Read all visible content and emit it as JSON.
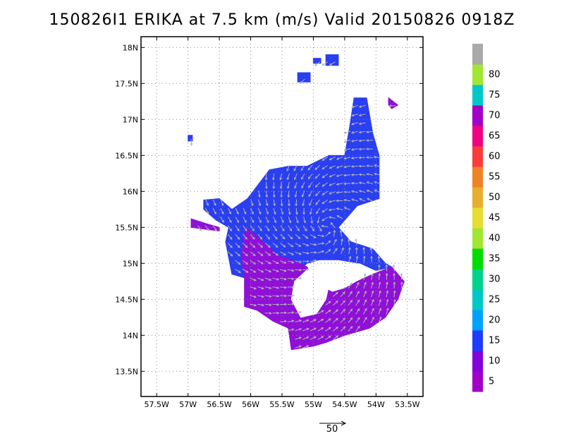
{
  "chart_data": {
    "type": "heatmap",
    "title": "150826I1 ERIKA at 7.5 km (m/s) Valid 20150826 0918Z",
    "xlabel": "",
    "ylabel": "",
    "xlim": [
      -57.75,
      -53.25
    ],
    "ylim": [
      13.15,
      18.15
    ],
    "grid": true,
    "x_ticks": [
      {
        "value": -57.5,
        "label": "57.5W"
      },
      {
        "value": -57.0,
        "label": "57W"
      },
      {
        "value": -56.5,
        "label": "56.5W"
      },
      {
        "value": -56.0,
        "label": "56W"
      },
      {
        "value": -55.5,
        "label": "55.5W"
      },
      {
        "value": -55.0,
        "label": "55W"
      },
      {
        "value": -54.5,
        "label": "54.5W"
      },
      {
        "value": -54.0,
        "label": "54W"
      },
      {
        "value": -53.5,
        "label": "53.5W"
      }
    ],
    "y_ticks": [
      {
        "value": 18.0,
        "label": "18N"
      },
      {
        "value": 17.5,
        "label": "17.5N"
      },
      {
        "value": 17.0,
        "label": "17N"
      },
      {
        "value": 16.5,
        "label": "16.5N"
      },
      {
        "value": 16.0,
        "label": "16N"
      },
      {
        "value": 15.5,
        "label": "15.5N"
      },
      {
        "value": 15.0,
        "label": "15N"
      },
      {
        "value": 14.5,
        "label": "14.5N"
      },
      {
        "value": 14.0,
        "label": "14N"
      },
      {
        "value": 13.5,
        "label": "13.5N"
      }
    ],
    "colorbar": {
      "bins": [
        {
          "label": "5",
          "color": "#a000c8"
        },
        {
          "label": "10",
          "color": "#8200dc"
        },
        {
          "label": "15",
          "color": "#1e3cff"
        },
        {
          "label": "20",
          "color": "#00a0ff"
        },
        {
          "label": "25",
          "color": "#00c8c8"
        },
        {
          "label": "30",
          "color": "#00d28c"
        },
        {
          "label": "35",
          "color": "#00dc00"
        },
        {
          "label": "40",
          "color": "#a0e632"
        },
        {
          "label": "45",
          "color": "#e6dc32"
        },
        {
          "label": "50",
          "color": "#e6af2d"
        },
        {
          "label": "55",
          "color": "#f08228"
        },
        {
          "label": "60",
          "color": "#fa3c3c"
        },
        {
          "label": "65",
          "color": "#f00082"
        },
        {
          "label": "70",
          "color": "#a000c8"
        },
        {
          "label": "75",
          "color": "#00c8c8"
        },
        {
          "label": "80",
          "color": "#a0e632"
        },
        {
          "label": "",
          "color": "#aaaaaa"
        }
      ]
    },
    "regions": [
      {
        "name": "blue",
        "value_range": "10-15",
        "color": "#2a3ff0",
        "polygon": [
          [
            -56.75,
            15.88
          ],
          [
            -56.5,
            15.9
          ],
          [
            -56.3,
            15.75
          ],
          [
            -56.05,
            15.9
          ],
          [
            -55.7,
            16.3
          ],
          [
            -55.4,
            16.35
          ],
          [
            -55.1,
            16.35
          ],
          [
            -54.75,
            16.5
          ],
          [
            -54.5,
            16.5
          ],
          [
            -54.42,
            16.9
          ],
          [
            -54.35,
            17.3
          ],
          [
            -54.15,
            17.3
          ],
          [
            -54.05,
            16.8
          ],
          [
            -53.95,
            16.5
          ],
          [
            -53.95,
            16.0
          ],
          [
            -53.95,
            15.9
          ],
          [
            -54.3,
            15.8
          ],
          [
            -54.6,
            15.5
          ],
          [
            -54.4,
            15.3
          ],
          [
            -54.05,
            15.2
          ],
          [
            -53.85,
            15.0
          ],
          [
            -53.75,
            14.95
          ],
          [
            -54.0,
            14.9
          ],
          [
            -54.25,
            15.0
          ],
          [
            -54.6,
            15.05
          ],
          [
            -54.9,
            15.05
          ],
          [
            -55.1,
            15.0
          ],
          [
            -55.3,
            14.85
          ],
          [
            -55.6,
            14.8
          ],
          [
            -55.85,
            14.8
          ],
          [
            -56.1,
            14.8
          ],
          [
            -56.3,
            14.85
          ],
          [
            -56.4,
            15.3
          ],
          [
            -56.35,
            15.5
          ],
          [
            -56.55,
            15.6
          ],
          [
            -56.75,
            15.75
          ]
        ]
      },
      {
        "name": "blue-patch-n1",
        "value_range": "10-15",
        "color": "#2a3ff0",
        "polygon": [
          [
            -55.0,
            17.85
          ],
          [
            -54.88,
            17.85
          ],
          [
            -54.88,
            17.78
          ],
          [
            -55.0,
            17.78
          ]
        ]
      },
      {
        "name": "blue-patch-n2",
        "value_range": "10-15",
        "color": "#2a3ff0",
        "polygon": [
          [
            -54.8,
            17.9
          ],
          [
            -54.6,
            17.9
          ],
          [
            -54.6,
            17.75
          ],
          [
            -54.8,
            17.75
          ]
        ]
      },
      {
        "name": "blue-patch-n3",
        "value_range": "10-15",
        "color": "#2a3ff0",
        "polygon": [
          [
            -55.25,
            17.65
          ],
          [
            -55.05,
            17.65
          ],
          [
            -55.05,
            17.52
          ],
          [
            -55.25,
            17.52
          ]
        ]
      },
      {
        "name": "blue-patch-w",
        "value_range": "10-15",
        "color": "#2a3ff0",
        "polygon": [
          [
            -57.0,
            16.78
          ],
          [
            -56.93,
            16.78
          ],
          [
            -56.93,
            16.7
          ],
          [
            -57.0,
            16.7
          ]
        ]
      },
      {
        "name": "purple",
        "value_range": "5-10",
        "color": "#8f10d6",
        "polygon": [
          [
            -56.08,
            15.5
          ],
          [
            -55.8,
            15.3
          ],
          [
            -55.55,
            15.1
          ],
          [
            -55.35,
            15.05
          ],
          [
            -55.1,
            14.95
          ],
          [
            -54.9,
            14.7
          ],
          [
            -54.7,
            14.6
          ],
          [
            -54.5,
            14.65
          ],
          [
            -54.3,
            14.75
          ],
          [
            -54.05,
            14.85
          ],
          [
            -53.75,
            14.95
          ],
          [
            -53.55,
            14.75
          ],
          [
            -53.65,
            14.5
          ],
          [
            -53.85,
            14.25
          ],
          [
            -54.1,
            14.1
          ],
          [
            -54.5,
            14.0
          ],
          [
            -54.8,
            13.9
          ],
          [
            -55.0,
            13.85
          ],
          [
            -55.35,
            13.8
          ],
          [
            -55.4,
            14.1
          ],
          [
            -55.65,
            14.2
          ],
          [
            -55.9,
            14.35
          ],
          [
            -56.1,
            14.4
          ],
          [
            -56.1,
            14.8
          ],
          [
            -56.15,
            15.1
          ]
        ]
      },
      {
        "name": "purple-sw",
        "value_range": "5-10",
        "color": "#8f10d6",
        "polygon": [
          [
            -56.95,
            15.62
          ],
          [
            -56.7,
            15.55
          ],
          [
            -56.5,
            15.5
          ],
          [
            -56.5,
            15.45
          ],
          [
            -56.95,
            15.5
          ]
        ]
      },
      {
        "name": "purple-e",
        "value_range": "5-10",
        "color": "#8f10d6",
        "polygon": [
          [
            -53.8,
            17.3
          ],
          [
            -53.65,
            17.2
          ],
          [
            -53.75,
            17.15
          ],
          [
            -53.8,
            17.2
          ]
        ]
      },
      {
        "name": "white-hole",
        "value_range": "none",
        "color": "#ffffff",
        "polygon": [
          [
            -55.05,
            14.95
          ],
          [
            -54.85,
            14.85
          ],
          [
            -54.75,
            14.7
          ],
          [
            -54.8,
            14.5
          ],
          [
            -54.95,
            14.3
          ],
          [
            -55.2,
            14.25
          ],
          [
            -55.35,
            14.5
          ],
          [
            -55.3,
            14.75
          ]
        ]
      }
    ],
    "scale_arrow": {
      "label": "50",
      "value_ms": 50
    }
  }
}
